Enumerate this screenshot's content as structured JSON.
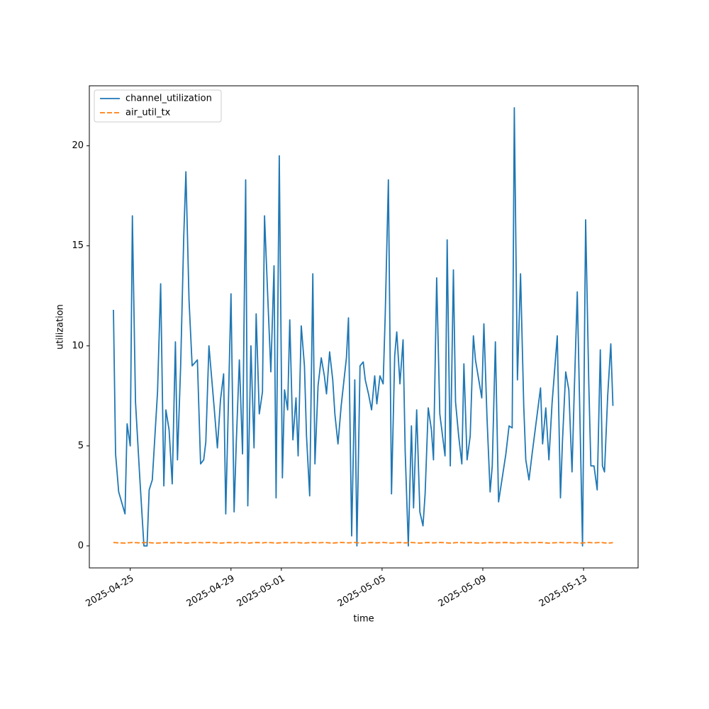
{
  "chart_data": {
    "type": "line",
    "xlabel": "time",
    "ylabel": "utilization",
    "x": [
      "2025-04-24 08:00",
      "2025-04-24 10:00",
      "2025-04-24 13:00",
      "2025-04-24 19:00",
      "2025-04-24 21:00",
      "2025-04-25 00:00",
      "2025-04-25 02:00",
      "2025-04-25 05:00",
      "2025-04-25 09:00",
      "2025-04-25 13:00",
      "2025-04-25 16:00",
      "2025-04-25 18:00",
      "2025-04-25 21:00",
      "2025-04-26 02:00",
      "2025-04-26 05:00",
      "2025-04-26 08:00",
      "2025-04-26 10:00",
      "2025-04-26 13:00",
      "2025-04-26 16:00",
      "2025-04-26 19:00",
      "2025-04-26 21:00",
      "2025-04-27 00:00",
      "2025-04-27 03:00",
      "2025-04-27 05:00",
      "2025-04-27 08:00",
      "2025-04-27 11:00",
      "2025-04-27 16:00",
      "2025-04-27 19:00",
      "2025-04-27 22:00",
      "2025-04-28 00:00",
      "2025-04-28 03:00",
      "2025-04-28 08:00",
      "2025-04-28 11:00",
      "2025-04-28 14:00",
      "2025-04-28 17:00",
      "2025-04-28 19:00",
      "2025-04-28 22:00",
      "2025-04-29 00:00",
      "2025-04-29 03:00",
      "2025-04-29 05:00",
      "2025-04-29 08:00",
      "2025-04-29 11:00",
      "2025-04-29 14:00",
      "2025-04-29 16:00",
      "2025-04-29 19:00",
      "2025-04-29 22:00",
      "2025-04-30 00:00",
      "2025-04-30 03:00",
      "2025-04-30 06:00",
      "2025-04-30 08:00",
      "2025-04-30 11:00",
      "2025-04-30 14:00",
      "2025-04-30 17:00",
      "2025-04-30 19:00",
      "2025-04-30 22:00",
      "2025-05-01 01:00",
      "2025-05-01 03:00",
      "2025-05-01 06:00",
      "2025-05-01 08:00",
      "2025-05-01 11:00",
      "2025-05-01 14:00",
      "2025-05-01 16:00",
      "2025-05-01 19:00",
      "2025-05-01 22:00",
      "2025-05-02 00:00",
      "2025-05-02 03:00",
      "2025-05-02 06:00",
      "2025-05-02 08:00",
      "2025-05-02 11:00",
      "2025-05-02 14:00",
      "2025-05-02 17:00",
      "2025-05-02 19:00",
      "2025-05-02 22:00",
      "2025-05-03 01:00",
      "2025-05-03 03:00",
      "2025-05-03 06:00",
      "2025-05-03 09:00",
      "2025-05-03 14:00",
      "2025-05-03 16:00",
      "2025-05-03 19:00",
      "2025-05-03 22:00",
      "2025-05-04 00:00",
      "2025-05-04 03:00",
      "2025-05-04 06:00",
      "2025-05-04 08:00",
      "2025-05-04 11:00",
      "2025-05-04 14:00",
      "2025-05-04 17:00",
      "2025-05-04 19:00",
      "2025-05-04 22:00",
      "2025-05-05 01:00",
      "2025-05-05 03:00",
      "2025-05-05 06:00",
      "2025-05-05 09:00",
      "2025-05-05 12:00",
      "2025-05-05 14:00",
      "2025-05-05 17:00",
      "2025-05-05 20:00",
      "2025-05-05 22:00",
      "2025-05-06 01:00",
      "2025-05-06 04:00",
      "2025-05-06 06:00",
      "2025-05-06 09:00",
      "2025-05-06 12:00",
      "2025-05-06 15:00",
      "2025-05-06 17:00",
      "2025-05-06 20:00",
      "2025-05-06 23:00",
      "2025-05-07 01:00",
      "2025-05-07 04:00",
      "2025-05-07 07:00",
      "2025-05-07 12:00",
      "2025-05-07 14:00",
      "2025-05-07 17:00",
      "2025-05-07 20:00",
      "2025-05-07 22:00",
      "2025-05-08 01:00",
      "2025-05-08 04:00",
      "2025-05-08 06:00",
      "2025-05-08 09:00",
      "2025-05-08 12:00",
      "2025-05-08 15:00",
      "2025-05-08 17:00",
      "2025-05-08 23:00",
      "2025-05-09 01:00",
      "2025-05-09 04:00",
      "2025-05-09 07:00",
      "2025-05-09 09:00",
      "2025-05-09 12:00",
      "2025-05-09 15:00",
      "2025-05-09 22:00",
      "2025-05-10 01:00",
      "2025-05-10 04:00",
      "2025-05-10 06:00",
      "2025-05-10 09:00",
      "2025-05-10 12:00",
      "2025-05-10 15:00",
      "2025-05-10 17:00",
      "2025-05-10 20:00",
      "2025-05-10 23:00",
      "2025-05-11 07:00",
      "2025-05-11 09:00",
      "2025-05-11 12:00",
      "2025-05-11 15:00",
      "2025-05-11 18:00",
      "2025-05-11 23:00",
      "2025-05-12 02:00",
      "2025-05-12 04:00",
      "2025-05-12 07:00",
      "2025-05-12 10:00",
      "2025-05-12 13:00",
      "2025-05-12 15:00",
      "2025-05-12 18:00",
      "2025-05-12 21:00",
      "2025-05-12 23:00",
      "2025-05-13 02:00",
      "2025-05-13 05:00",
      "2025-05-13 07:00",
      "2025-05-13 10:00",
      "2025-05-13 13:00",
      "2025-05-13 16:00",
      "2025-05-13 18:00",
      "2025-05-13 20:00",
      "2025-05-13 23:00",
      "2025-05-14 02:00",
      "2025-05-14 04:00"
    ],
    "series": [
      {
        "name": "channel_utilization",
        "color": "#1f77b4",
        "dash": false,
        "values": [
          11.8,
          4.6,
          2.7,
          1.6,
          6.1,
          5.0,
          16.5,
          7.2,
          3.5,
          0,
          0,
          2.8,
          3.3,
          7.7,
          13.1,
          3.0,
          6.8,
          5.8,
          3.1,
          10.2,
          4.3,
          9.0,
          15.5,
          18.7,
          12.3,
          9.0,
          9.3,
          4.1,
          4.3,
          5.2,
          10.0,
          6.9,
          4.9,
          7.3,
          8.6,
          1.6,
          8.1,
          12.6,
          1.7,
          5.1,
          9.3,
          4.6,
          18.3,
          2.0,
          10.0,
          4.9,
          11.6,
          6.6,
          7.7,
          16.5,
          12.5,
          8.7,
          14.0,
          2.4,
          19.5,
          3.4,
          7.8,
          6.8,
          11.3,
          5.3,
          7.4,
          4.5,
          11.0,
          9.0,
          5.5,
          2.5,
          13.6,
          4.1,
          8.0,
          9.4,
          8.5,
          7.6,
          9.7,
          8.3,
          6.6,
          5.1,
          7.0,
          9.4,
          11.4,
          0.5,
          8.3,
          0,
          9.0,
          9.2,
          8.3,
          7.6,
          6.8,
          8.5,
          7.1,
          8.5,
          8.1,
          11.5,
          18.3,
          2.6,
          9.5,
          10.7,
          8.1,
          10.3,
          4.7,
          0,
          6.0,
          1.9,
          6.8,
          1.7,
          1.0,
          2.6,
          6.9,
          5.8,
          4.3,
          13.4,
          6.6,
          4.5,
          15.3,
          4.0,
          13.8,
          7.2,
          5.5,
          4.1,
          9.1,
          4.3,
          5.5,
          10.5,
          9.3,
          7.4,
          11.1,
          6.4,
          2.7,
          4.0,
          10.2,
          2.2,
          4.6,
          6.0,
          5.9,
          21.9,
          8.3,
          13.6,
          7.0,
          4.3,
          3.3,
          4.6,
          7.9,
          5.1,
          6.9,
          4.3,
          7.1,
          10.5,
          2.4,
          5.3,
          8.7,
          7.8,
          3.7,
          7.4,
          12.7,
          5.3,
          0,
          16.3,
          8.2,
          4.0,
          4.0,
          2.8,
          9.8,
          4.0,
          3.7,
          7.5,
          10.1,
          7.0
        ]
      },
      {
        "name": "air_util_tx",
        "color": "#ff7f0e",
        "dash": true,
        "values": [
          0.17,
          0.16,
          0.15,
          0.14,
          0.15,
          0.16,
          0.17,
          0.16,
          0.15,
          0.16,
          0.17,
          0.16,
          0.15,
          0.14,
          0.15,
          0.16,
          0.17,
          0.16,
          0.15,
          0.16,
          0.17,
          0.16,
          0.15,
          0.14,
          0.15,
          0.16,
          0.17,
          0.16,
          0.15,
          0.16,
          0.17,
          0.16,
          0.15,
          0.14,
          0.15,
          0.16,
          0.17,
          0.16,
          0.15,
          0.16,
          0.17,
          0.16,
          0.15,
          0.14,
          0.15,
          0.16,
          0.17,
          0.16,
          0.15,
          0.16,
          0.17,
          0.16,
          0.15,
          0.14,
          0.15,
          0.16,
          0.17,
          0.16,
          0.15,
          0.16,
          0.17,
          0.16,
          0.15,
          0.14,
          0.15,
          0.16,
          0.17,
          0.16,
          0.15,
          0.16,
          0.17,
          0.16,
          0.15,
          0.14,
          0.15,
          0.16,
          0.17,
          0.16,
          0.15,
          0.16,
          0.17,
          0.16,
          0.15,
          0.14,
          0.15,
          0.16,
          0.17,
          0.16,
          0.15,
          0.16,
          0.17,
          0.16,
          0.15,
          0.14,
          0.15,
          0.16,
          0.17,
          0.16,
          0.15,
          0.16,
          0.17,
          0.16,
          0.15,
          0.14,
          0.15,
          0.16,
          0.17,
          0.16,
          0.15,
          0.16,
          0.17,
          0.16,
          0.15,
          0.14,
          0.15,
          0.16,
          0.17,
          0.16,
          0.15,
          0.16,
          0.17,
          0.16,
          0.15,
          0.14,
          0.15,
          0.16,
          0.17,
          0.16,
          0.15,
          0.16,
          0.17,
          0.16,
          0.15,
          0.14,
          0.15,
          0.16,
          0.17,
          0.16,
          0.15,
          0.16,
          0.17,
          0.16,
          0.15,
          0.14,
          0.15,
          0.16,
          0.17,
          0.16,
          0.15,
          0.16,
          0.17,
          0.16,
          0.15,
          0.14,
          0.15,
          0.16,
          0.17,
          0.16,
          0.15,
          0.16,
          0.17,
          0.16,
          0.15,
          0.14,
          0.15,
          0.16
        ]
      }
    ],
    "xlim": [
      "2025-04-23 09:00",
      "2025-05-15 04:00"
    ],
    "xticks": [
      "2025-04-25",
      "2025-04-29",
      "2025-05-01",
      "2025-05-05",
      "2025-05-09",
      "2025-05-13"
    ],
    "ylim": [
      -1.1,
      23
    ],
    "yticks": [
      0,
      5,
      10,
      15,
      20
    ],
    "grid": false,
    "legend": "upper left"
  }
}
